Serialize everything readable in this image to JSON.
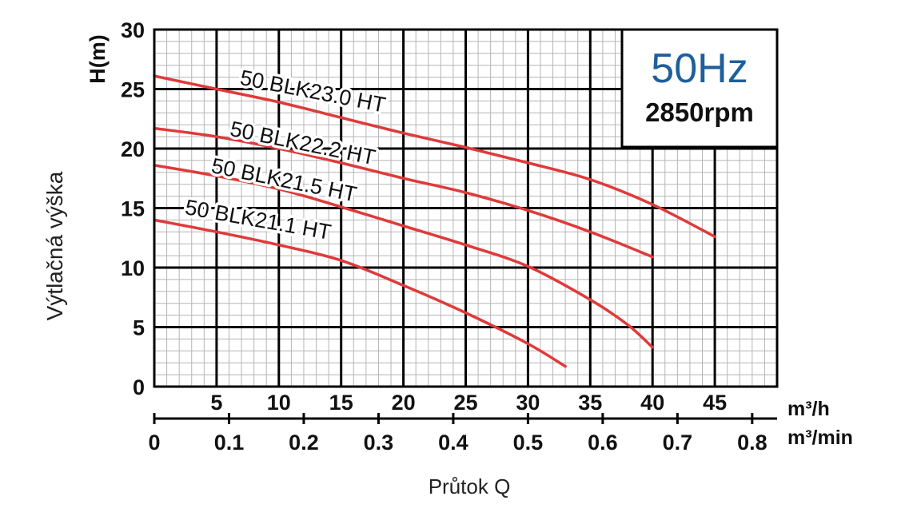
{
  "chart_data": {
    "type": "line",
    "title": "",
    "xlabel": "Průtok Q",
    "ylabel": "Výtlačná výška",
    "y_unit": "H(m)",
    "x_unit": "m³/h",
    "x2_unit": "m³/min",
    "xlim": [
      0,
      50
    ],
    "ylim": [
      0,
      30
    ],
    "x_ticks": [
      "5",
      "10",
      "15",
      "20",
      "25",
      "30",
      "35",
      "40",
      "45"
    ],
    "x2_ticks": [
      "0",
      "0.1",
      "0.2",
      "0.3",
      "0.4",
      "0.5",
      "0.6",
      "0.7",
      "0.8"
    ],
    "y_ticks": [
      "0",
      "5",
      "10",
      "15",
      "20",
      "25",
      "30"
    ],
    "grid": true,
    "info_box": {
      "frequency": "50Hz",
      "speed": "2850rpm"
    },
    "colors": {
      "curve": "#e03a3a",
      "frequency": "#1e5f9c",
      "grid_major": "#000000",
      "grid_minor": "#b5b5b5"
    },
    "series": [
      {
        "name": "50 BLK23.0 HT",
        "x": [
          0,
          5,
          10,
          15,
          20,
          25,
          30,
          35,
          40,
          45
        ],
        "y": [
          26.1,
          25.0,
          23.9,
          22.6,
          21.3,
          20.1,
          18.8,
          17.4,
          15.3,
          12.6
        ]
      },
      {
        "name": "50 BLK22.2 HT",
        "x": [
          0,
          5,
          10,
          15,
          20,
          25,
          30,
          35,
          40
        ],
        "y": [
          21.7,
          21.0,
          20.0,
          18.8,
          17.5,
          16.3,
          14.8,
          13.0,
          10.9
        ]
      },
      {
        "name": "50 BLK21.5 HT",
        "x": [
          0,
          5,
          10,
          15,
          20,
          25,
          30,
          35,
          38,
          40
        ],
        "y": [
          18.6,
          17.7,
          16.6,
          15.1,
          13.5,
          11.9,
          10.1,
          7.3,
          5.2,
          3.3
        ]
      },
      {
        "name": "50 BLK21.1 HT",
        "x": [
          0,
          5,
          10,
          15,
          20,
          25,
          30,
          33
        ],
        "y": [
          14.0,
          13.0,
          11.9,
          10.6,
          8.5,
          6.2,
          3.6,
          1.7
        ]
      }
    ]
  }
}
